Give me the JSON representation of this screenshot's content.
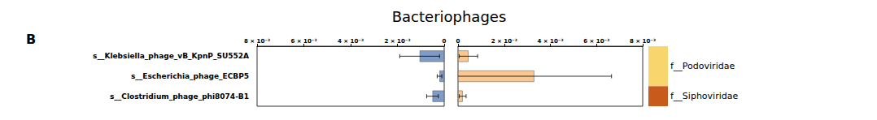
{
  "chart_data": {
    "type": "bar",
    "orientation": "horizontal",
    "title": "Bacteriophages",
    "panel_label": "B",
    "categories": [
      "s__Klebsiella_phage_vB_KpnP_SU552A",
      "s__Escherichia_phage_ECBP5",
      "s__Clostridium_phage_phi8074-B1"
    ],
    "families": [
      "f__Podoviridae",
      "f__Podoviridae",
      "f__Siphoviridae"
    ],
    "family_legend": [
      {
        "name": "f__Podoviridae",
        "color": "#f9d56e"
      },
      {
        "name": "f__Siphoviridae",
        "color": "#c85a1b"
      }
    ],
    "series": [
      {
        "color": "#7f9bc7",
        "values": [
          0.00105,
          0.0002,
          0.0005
        ],
        "errors": [
          0.00085,
          0.0001,
          0.00025
        ]
      },
      {
        "color": "#f9c78f",
        "values": [
          0.00045,
          0.0033,
          0.0002
        ],
        "errors": [
          0.0004,
          0.00335,
          0.00015
        ]
      }
    ],
    "xlim": [
      0,
      0.008
    ],
    "xticks": [
      {
        "value": 0.008,
        "label": "8 × 10⁻³"
      },
      {
        "value": 0.006,
        "label": "6 × 10⁻³"
      },
      {
        "value": 0.004,
        "label": "4 × 10⁻³"
      },
      {
        "value": 0.002,
        "label": "2 × 10⁻³"
      },
      0
    ],
    "grid": false
  }
}
